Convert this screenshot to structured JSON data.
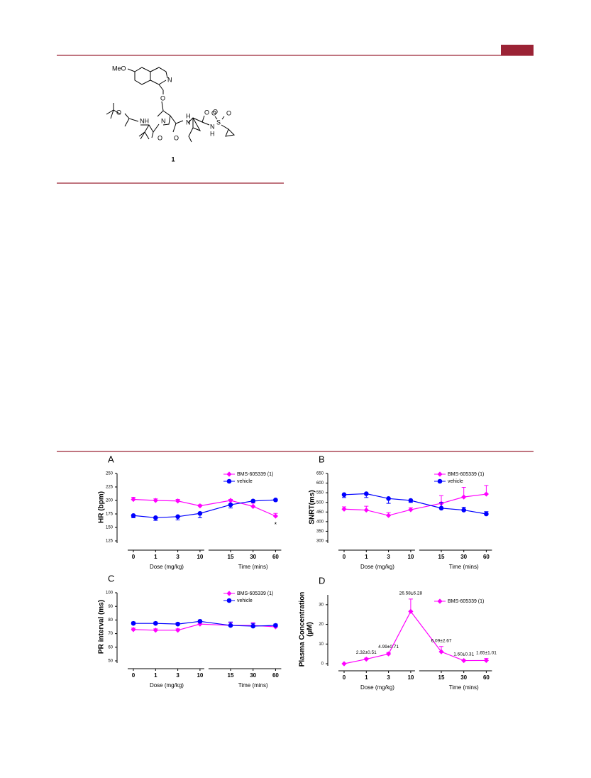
{
  "compound": {
    "atoms": [
      "MeO",
      "N",
      "O",
      "O",
      "NH",
      "N",
      "O",
      "O",
      "H",
      "N",
      "O",
      "O",
      "N",
      "H",
      "S",
      "O",
      "O"
    ],
    "number": "1"
  },
  "chart_data": [
    {
      "type": "line",
      "panel": "A",
      "ylabel": "HR (bpm)",
      "xlabels": [
        "Dose (mg/kg)",
        "Time (mins)"
      ],
      "categories": [
        0,
        1,
        3,
        10,
        15,
        30,
        60
      ],
      "axis_break_after": 10,
      "ylim": [
        125,
        250
      ],
      "yticks": [
        125,
        150,
        175,
        200,
        225,
        250
      ],
      "legend": "upper right",
      "annotation": "*",
      "series": [
        {
          "name": "BMS-605339 (1)",
          "color": "#ff00ff",
          "marker": "diamond",
          "values": [
            202,
            200,
            199,
            190,
            200,
            189,
            171
          ],
          "errors": [
            4,
            3,
            3,
            2,
            2,
            6,
            5
          ]
        },
        {
          "name": "vehicle",
          "color": "#0000ff",
          "marker": "circle",
          "values": [
            172,
            168,
            170,
            176,
            192,
            199,
            201
          ],
          "errors": [
            4,
            5,
            6,
            8,
            6,
            2,
            2
          ]
        }
      ]
    },
    {
      "type": "line",
      "panel": "B",
      "ylabel": "SNRT(ms)",
      "xlabels": [
        "Dose (mg/kg)",
        "Time (mins)"
      ],
      "categories": [
        0,
        1,
        3,
        10,
        15,
        30,
        60
      ],
      "axis_break_after": 10,
      "ylim": [
        300,
        650
      ],
      "yticks": [
        300,
        350,
        400,
        450,
        500,
        550,
        600,
        650
      ],
      "legend": "upper right",
      "series": [
        {
          "name": "BMS-605339 (1)",
          "color": "#ff00ff",
          "marker": "diamond",
          "values": [
            465,
            460,
            432,
            462,
            495,
            528,
            543
          ],
          "errors": [
            12,
            20,
            15,
            10,
            40,
            50,
            45
          ]
        },
        {
          "name": "vehicle",
          "color": "#0000ff",
          "marker": "circle",
          "values": [
            540,
            545,
            520,
            510,
            470,
            460,
            440
          ],
          "errors": [
            15,
            20,
            25,
            10,
            30,
            15,
            12
          ]
        }
      ]
    },
    {
      "type": "line",
      "panel": "C",
      "ylabel": "PR interval (ms)",
      "xlabels": [
        "Dose (mg/kg)",
        "Time (mins)"
      ],
      "categories": [
        0,
        1,
        3,
        10,
        15,
        30,
        60
      ],
      "axis_break_after": 10,
      "ylim": [
        50,
        100
      ],
      "yticks": [
        50,
        60,
        70,
        80,
        90,
        100
      ],
      "legend": "upper right",
      "series": [
        {
          "name": "BMS-605339 (1)",
          "color": "#ff00ff",
          "marker": "diamond",
          "values": [
            73,
            72.5,
            72.5,
            77,
            76,
            76,
            75
          ],
          "errors": [
            1,
            1,
            1,
            1,
            2,
            2,
            1.5
          ]
        },
        {
          "name": "vehicle",
          "color": "#0000ff",
          "marker": "circle",
          "values": [
            77.5,
            77.5,
            77,
            79,
            76,
            75.5,
            76
          ],
          "errors": [
            1,
            1,
            1,
            1,
            2.5,
            2,
            1
          ]
        }
      ]
    },
    {
      "type": "line",
      "panel": "D",
      "ylabel": [
        "Plasma Concentration",
        "(µM)"
      ],
      "xlabels": [
        "Dose (mg/kg)",
        "Time (mins)"
      ],
      "categories": [
        0,
        1,
        3,
        10,
        15,
        30,
        60
      ],
      "axis_break_after": 10,
      "ylim": [
        0,
        35
      ],
      "yticks": [
        0,
        10,
        20,
        30
      ],
      "legend": "upper right",
      "series": [
        {
          "name": "BMS-605339 (1)",
          "color": "#ff00ff",
          "marker": "diamond",
          "values": [
            0,
            2.32,
            4.99,
            26.58,
            6.09,
            1.6,
            1.65
          ],
          "errors": [
            0,
            0.51,
            0.71,
            6.28,
            2.67,
            0.31,
            1.01
          ],
          "value_labels": [
            null,
            "2.32±0.51",
            "4.99±0.71",
            "26.58±6.28",
            "6.09±2.67",
            "1.60±0.31",
            "1.65±1.01"
          ]
        }
      ]
    }
  ]
}
